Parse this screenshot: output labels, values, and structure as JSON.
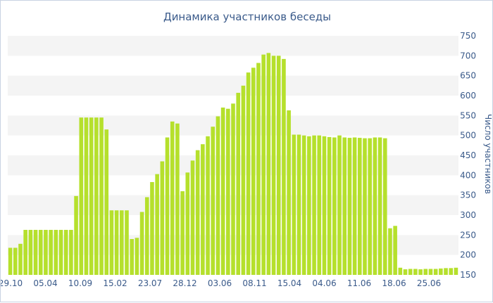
{
  "chart_data": {
    "type": "bar",
    "title": "Динамика участников беседы",
    "ylabel": "Число участников",
    "xlabel": "",
    "ylim": [
      150,
      750
    ],
    "yticks": [
      150,
      200,
      250,
      300,
      350,
      400,
      450,
      500,
      550,
      600,
      650,
      700,
      750
    ],
    "x_tick_labels": [
      "29.10",
      "05.04",
      "10.09",
      "15.02",
      "23.07",
      "28.12",
      "03.06",
      "08.11",
      "15.04",
      "04.06",
      "11.06",
      "18.06",
      "25.06"
    ],
    "values": [
      218,
      218,
      228,
      263,
      263,
      263,
      263,
      263,
      263,
      263,
      263,
      263,
      263,
      348,
      545,
      545,
      545,
      545,
      545,
      515,
      312,
      312,
      312,
      312,
      240,
      243,
      308,
      345,
      383,
      403,
      435,
      495,
      535,
      530,
      360,
      407,
      437,
      463,
      478,
      498,
      522,
      548,
      570,
      567,
      580,
      607,
      625,
      658,
      670,
      682,
      703,
      707,
      700,
      700,
      692,
      563,
      502,
      502,
      500,
      498,
      500,
      500,
      498,
      496,
      495,
      500,
      495,
      494,
      495,
      494,
      493,
      493,
      495,
      495,
      493,
      267,
      273,
      168,
      164,
      165,
      165,
      164,
      165,
      165,
      165,
      166,
      167,
      167,
      168
    ],
    "grid": true,
    "legend": "none",
    "bar_color": "#b5e02c",
    "band_color": "#f4f4f4"
  }
}
